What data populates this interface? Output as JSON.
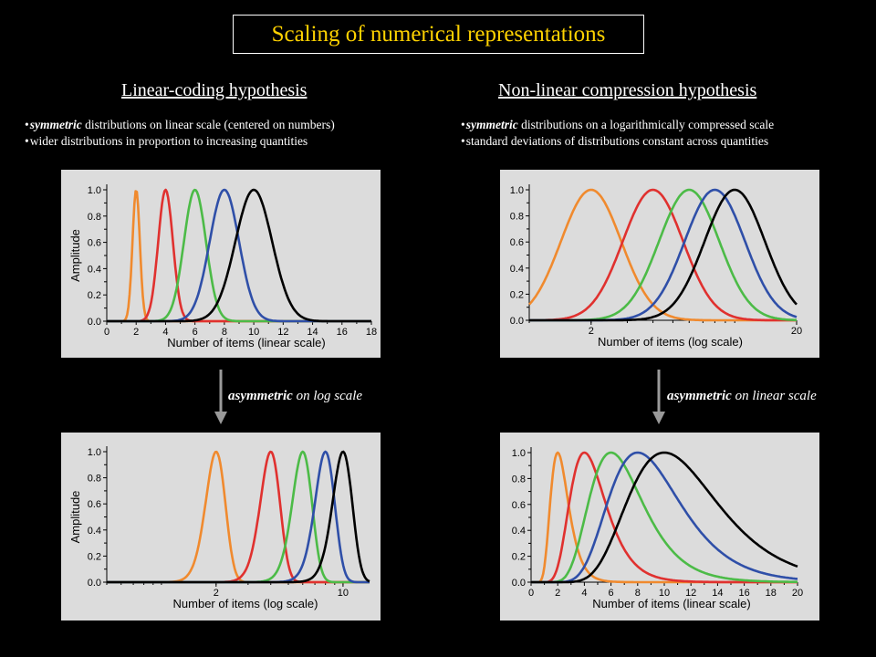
{
  "title": "Scaling of numerical representations",
  "left": {
    "heading": "Linear-coding hypothesis",
    "bullets": [
      {
        "em": "symmetric",
        "text": " distributions on linear scale (centered on numbers)"
      },
      {
        "em": "",
        "text": "wider distributions in proportion to increasing quantities"
      }
    ],
    "arrow_label": {
      "em": "asymmetric",
      "text": " on log scale"
    }
  },
  "right": {
    "heading": "Non-linear compression hypothesis",
    "bullets": [
      {
        "em": "symmetric",
        "text": " distributions on a logarithmically compressed scale"
      },
      {
        "em": "",
        "text": "standard deviations of distributions constant across quantities"
      }
    ],
    "arrow_label": {
      "em": "asymmetric",
      "text": " on linear scale"
    }
  },
  "colors": {
    "title": "#ffd200",
    "panel_bg": "#dcdcdc",
    "series": [
      "#f08a2e",
      "#e0312f",
      "#4cbb47",
      "#2f4fa8",
      "#000000"
    ]
  },
  "chart_data": [
    {
      "type": "line",
      "id": "linear-top-left",
      "xlabel": "Number of items (linear scale)",
      "ylabel": "Amplitude",
      "xscale": "linear",
      "xlim": [
        0,
        18
      ],
      "xticks": [
        "0",
        "2",
        "4",
        "6",
        "8",
        "10",
        "12",
        "14",
        "16",
        "18"
      ],
      "ylim": [
        0,
        1
      ],
      "yticks": [
        "0.0",
        "0.2",
        "0.4",
        "0.6",
        "0.8",
        "1.0"
      ],
      "series": [
        {
          "peak": 2,
          "spread": 0.25
        },
        {
          "peak": 4,
          "spread": 0.5
        },
        {
          "peak": 6,
          "spread": 0.75
        },
        {
          "peak": 8,
          "spread": 1.0
        },
        {
          "peak": 10,
          "spread": 1.25
        }
      ]
    },
    {
      "type": "line",
      "id": "log-top-right",
      "xlabel": "Number of items (log scale)",
      "ylabel": "",
      "xscale": "log",
      "xlim": [
        1,
        20
      ],
      "xticks": [
        "2",
        "20"
      ],
      "ylim": [
        0,
        1
      ],
      "yticks": [
        "0.0",
        "0.2",
        "0.4",
        "0.6",
        "0.8",
        "1.0"
      ],
      "series": [
        {
          "peak": 2,
          "spread": 0.125
        },
        {
          "peak": 4,
          "spread": 0.125
        },
        {
          "peak": 6,
          "spread": 0.125
        },
        {
          "peak": 8,
          "spread": 0.125
        },
        {
          "peak": 10,
          "spread": 0.125
        }
      ]
    },
    {
      "type": "line",
      "id": "log-bottom-left",
      "xlabel": "Number of items (log scale)",
      "ylabel": "Amplitude",
      "xscale": "log",
      "xlim": [
        0.5,
        14
      ],
      "xticks": [
        "2",
        "10"
      ],
      "ylim": [
        0,
        1
      ],
      "yticks": [
        "0.0",
        "0.2",
        "0.4",
        "0.6",
        "0.8",
        "1.0"
      ],
      "series": [
        {
          "peak": 2,
          "spread": 0.25
        },
        {
          "peak": 4,
          "spread": 0.5
        },
        {
          "peak": 6,
          "spread": 0.75
        },
        {
          "peak": 8,
          "spread": 1.0
        },
        {
          "peak": 10,
          "spread": 1.25
        }
      ]
    },
    {
      "type": "line",
      "id": "linear-bottom-right",
      "xlabel": "Number of items (linear scale)",
      "ylabel": "",
      "xscale": "linear",
      "xlim": [
        0,
        20
      ],
      "xticks": [
        "0",
        "2",
        "4",
        "6",
        "8",
        "10",
        "12",
        "14",
        "16",
        "18",
        "20"
      ],
      "ylim": [
        0,
        1
      ],
      "yticks": [
        "0.0",
        "0.2",
        "0.4",
        "0.6",
        "0.8",
        "1.0"
      ],
      "series": [
        {
          "peak": 2,
          "spread": 0.125
        },
        {
          "peak": 4,
          "spread": 0.125
        },
        {
          "peak": 6,
          "spread": 0.125
        },
        {
          "peak": 8,
          "spread": 0.125
        },
        {
          "peak": 10,
          "spread": 0.125
        }
      ]
    }
  ]
}
